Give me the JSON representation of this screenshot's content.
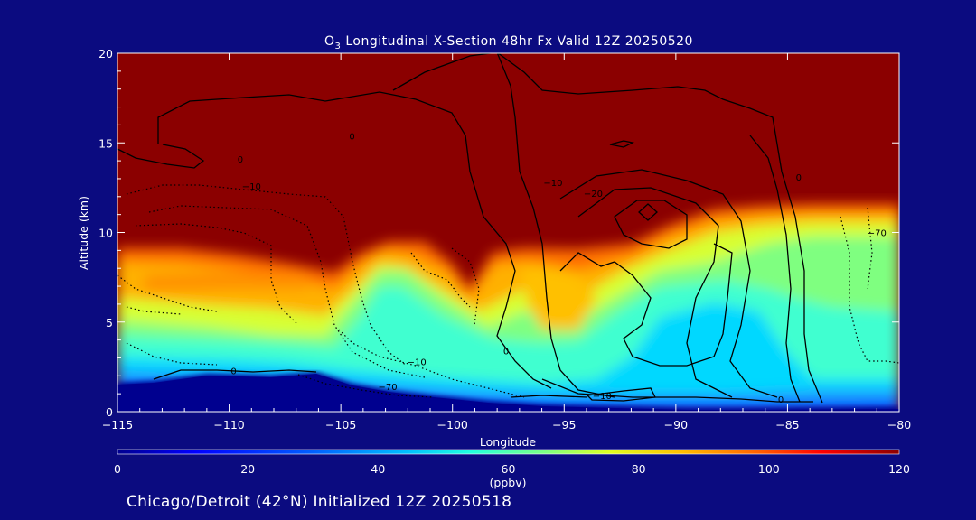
{
  "chart_data": {
    "type": "heatmap",
    "title_main": "O",
    "title_sub": "3",
    "title_rest": " Longitudinal X-Section 48hr  Fx Valid 12Z 20250520",
    "xlabel": "Longitude",
    "ylabel": "Altitude (km)",
    "xlim": [
      -115,
      -80
    ],
    "ylim": [
      0,
      20
    ],
    "x_ticks": [
      -115,
      -110,
      -105,
      -100,
      -95,
      -90,
      -85,
      -80
    ],
    "x_tick_labels": [
      "−115",
      "−110",
      "−105",
      "−100",
      "−95",
      "−90",
      "−85",
      "−80"
    ],
    "y_ticks": [
      0,
      5,
      10,
      15,
      20
    ],
    "y_tick_labels": [
      "0",
      "5",
      "10",
      "15",
      "20"
    ],
    "colorbar": {
      "min": 0,
      "max": 120,
      "ticks": [
        0,
        20,
        40,
        60,
        80,
        100,
        120
      ],
      "tick_labels": [
        "0",
        "20",
        "40",
        "60",
        "80",
        "100",
        "120"
      ],
      "unit_label": "(ppbv)",
      "colors": [
        "#00008f",
        "#0000ff",
        "#0060ff",
        "#00c0ff",
        "#20ffe0",
        "#80ff80",
        "#e0ff20",
        "#ffc000",
        "#ff6000",
        "#ff0000",
        "#8b0000"
      ]
    },
    "colormap": "jet",
    "contour_labels": [
      {
        "text": "0",
        "lon": -104.5,
        "alt": 15.2
      },
      {
        "text": "0",
        "lon": -109.5,
        "alt": 13.9
      },
      {
        "text": "−10",
        "lon": -109.0,
        "alt": 12.4
      },
      {
        "text": "−10",
        "lon": -95.5,
        "alt": 12.6
      },
      {
        "text": "−20",
        "lon": -93.7,
        "alt": 12.0
      },
      {
        "text": "0",
        "lon": -97.6,
        "alt": 3.2
      },
      {
        "text": "0",
        "lon": -109.8,
        "alt": 2.1
      },
      {
        "text": "−10",
        "lon": -101.6,
        "alt": 2.6
      },
      {
        "text": "−70",
        "lon": -102.9,
        "alt": 1.2
      },
      {
        "text": "−10",
        "lon": -93.3,
        "alt": 0.7
      },
      {
        "text": "0",
        "lon": -85.3,
        "alt": 0.5
      },
      {
        "text": "0",
        "lon": -84.5,
        "alt": 12.9
      },
      {
        "text": "−70",
        "lon": -81.0,
        "alt": 9.8
      }
    ]
  },
  "footer": "Chicago/Detroit (42°N) Initialized 12Z 20250518"
}
